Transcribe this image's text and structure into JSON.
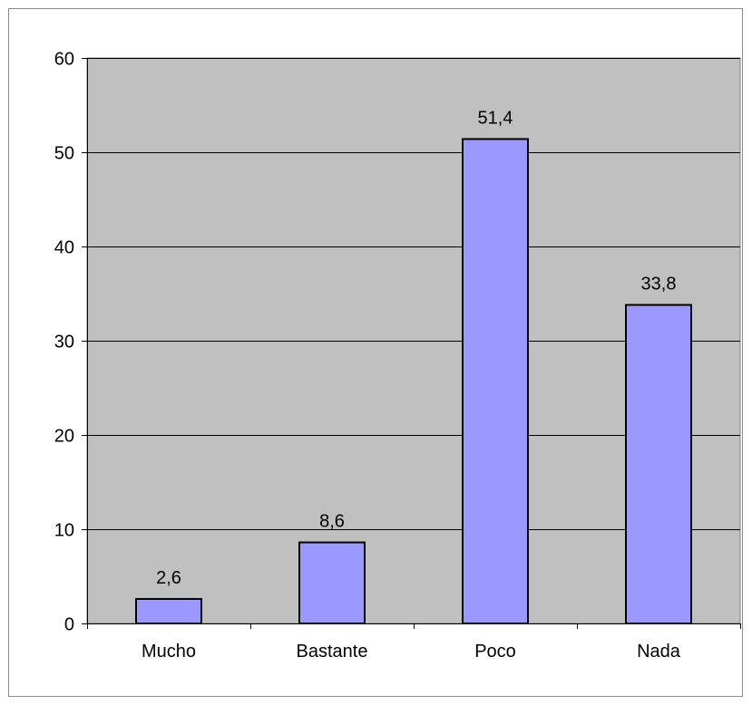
{
  "chart_data": {
    "type": "bar",
    "title": "",
    "xlabel": "",
    "ylabel": "",
    "categories": [
      "Mucho",
      "Bastante",
      "Poco",
      "Nada"
    ],
    "values": [
      2.6,
      8.6,
      51.4,
      33.8
    ],
    "data_labels": [
      "2,6",
      "8,6",
      "51,4",
      "33,8"
    ],
    "ylim": [
      0,
      60
    ],
    "yticks": [
      0,
      10,
      20,
      30,
      40,
      50,
      60
    ],
    "grid": true,
    "legend": "none",
    "colors": {
      "plot_background": "#c0c0c0",
      "bar_fill": "#9999ff",
      "bar_stroke": "#000000",
      "gridline": "#000000"
    }
  }
}
